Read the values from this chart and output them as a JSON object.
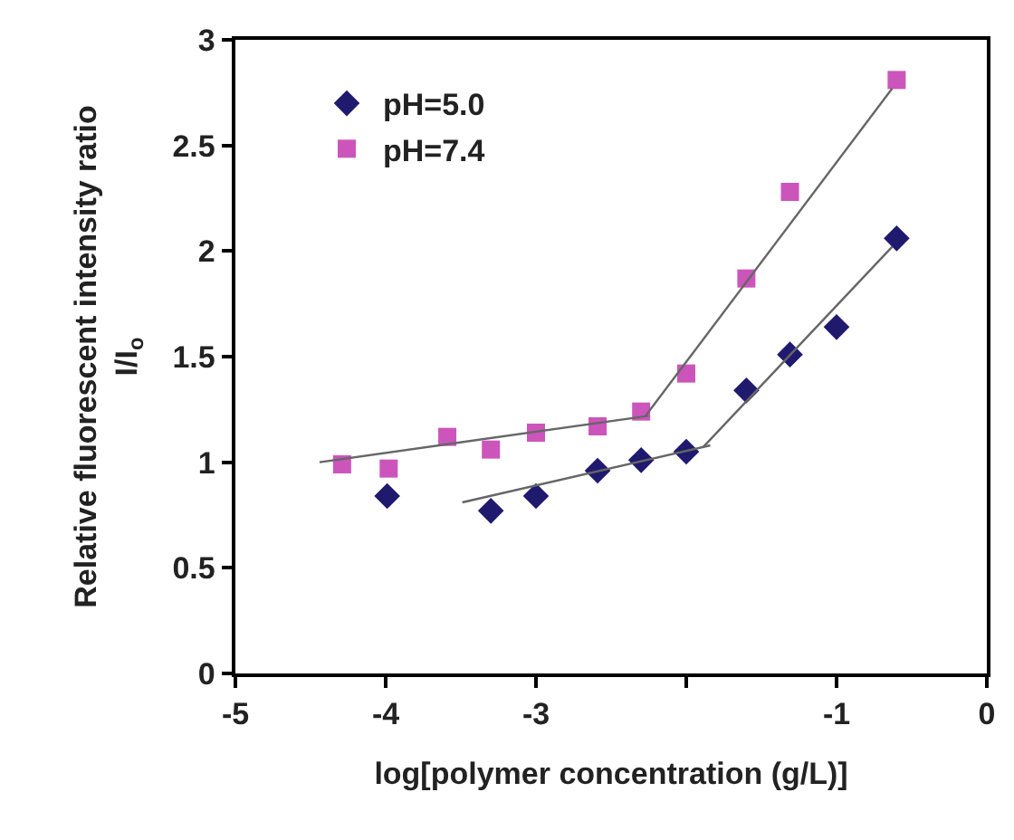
{
  "chart_data": {
    "type": "scatter",
    "xlabel": "log[polymer concentration (g/L)]",
    "ylabel": "Relative fluorescent intensity ratio\nI/I$_{o}$",
    "xlim": [
      -5,
      0
    ],
    "xticks": [
      -5,
      -4,
      -3,
      {
        "value": -2,
        "label": null
      },
      -1,
      0
    ],
    "ylim": [
      0,
      3
    ],
    "yticks": [
      0,
      0.5,
      1,
      1.5,
      2,
      2.5,
      3
    ],
    "legend": "top left",
    "series": [
      {
        "name": "pH=5.0",
        "color": "#1f1a6e",
        "marker": "diamond",
        "x": [
          -3.99,
          -3.3,
          -3.0,
          -2.59,
          -2.3,
          -2.0,
          -1.6,
          -1.31,
          -1.0,
          -0.6
        ],
        "values": [
          0.84,
          0.77,
          0.84,
          0.96,
          1.01,
          1.05,
          1.34,
          1.51,
          1.64,
          2.06
        ]
      },
      {
        "name": "pH=7.4",
        "color": "#cc55bb",
        "marker": "square",
        "x": [
          -4.29,
          -3.98,
          -3.59,
          -3.3,
          -3.0,
          -2.59,
          -2.3,
          -2.0,
          -1.6,
          -1.31,
          -0.6
        ],
        "values": [
          0.99,
          0.97,
          1.12,
          1.06,
          1.14,
          1.17,
          1.24,
          1.42,
          1.87,
          2.28,
          2.81
        ]
      },
      {
        "type": "line",
        "color": "#666666",
        "marker": "none",
        "line_style": "solid",
        "x": [
          -4.44,
          -2.25
        ],
        "values": [
          1.0,
          1.22
        ]
      },
      {
        "type": "line",
        "color": "#666666",
        "marker": "none",
        "line_style": "solid",
        "x": [
          -2.27,
          -0.63
        ],
        "values": [
          1.22,
          2.77
        ]
      },
      {
        "type": "line",
        "color": "#666666",
        "marker": "none",
        "line_style": "solid",
        "x": [
          -3.49,
          -1.84
        ],
        "values": [
          0.81,
          1.08
        ]
      },
      {
        "type": "line",
        "color": "#666666",
        "marker": "none",
        "line_style": "solid",
        "x": [
          -1.89,
          -0.63
        ],
        "values": [
          1.07,
          2.02
        ]
      }
    ]
  }
}
